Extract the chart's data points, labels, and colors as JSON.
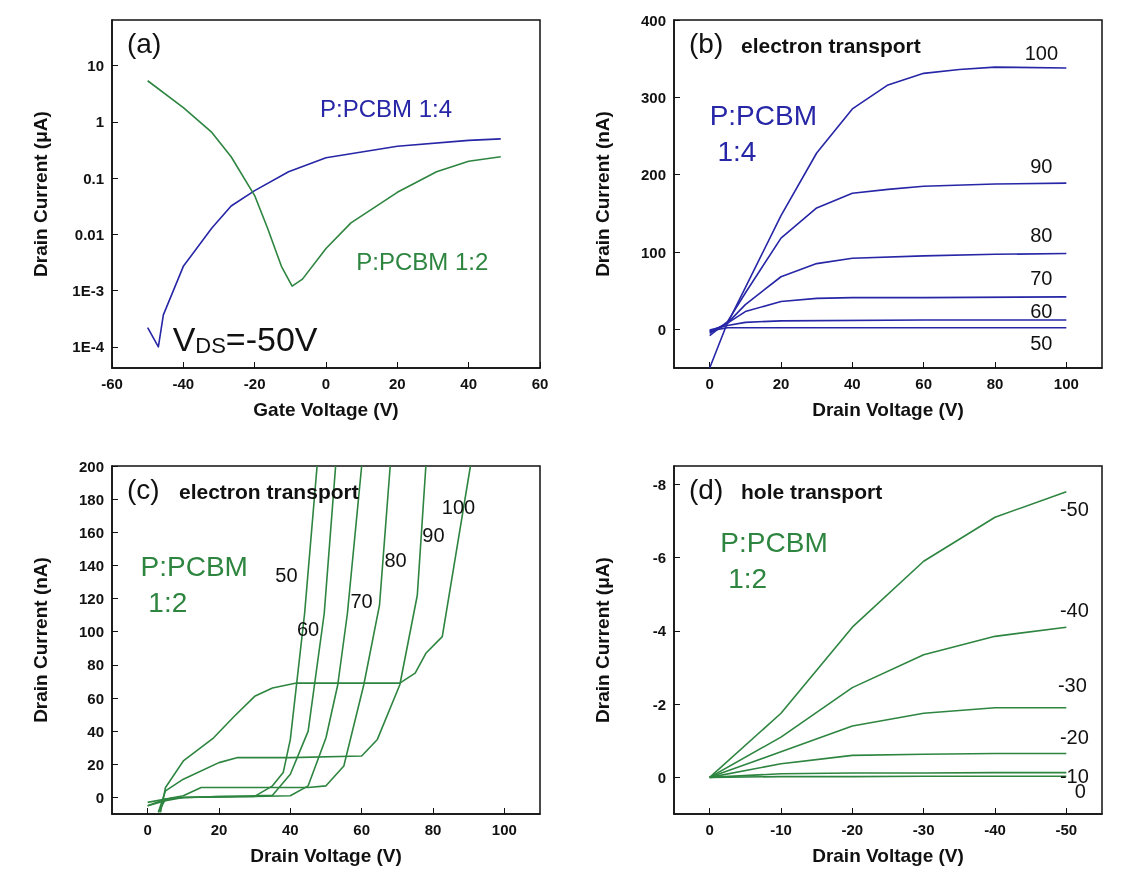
{
  "chart_data": [
    {
      "type": "line",
      "title": "(a)",
      "xlabel": "Gate Voltage (V)",
      "ylabel": "Drain Current (μA)",
      "log": "y",
      "xlim": [
        -60,
        60
      ],
      "xticks": [
        -60,
        -40,
        -20,
        0,
        20,
        40,
        60
      ],
      "ylim": [
        4.2e-05,
        65
      ],
      "yticks": [
        {
          "value": 0.0001,
          "label": "1E-4"
        },
        {
          "value": 0.001,
          "label": "1E-3"
        },
        0.01,
        0.1,
        1,
        10
      ],
      "annotations": [
        "V$_{DS}$=-50V"
      ],
      "series": [
        {
          "name": "P:PCBM 1:4",
          "color": "#2626a6",
          "x": [
            -50,
            -47,
            -45.6,
            -40,
            -32,
            -26.6,
            -20,
            -10.5,
            0,
            20,
            40,
            49
          ],
          "values": [
            0.00022,
            0.0001,
            0.00037,
            0.0027,
            0.013,
            0.032,
            0.06,
            0.13,
            0.23,
            0.37,
            0.47,
            0.5
          ]
        },
        {
          "name": "P:PCBM 1:2",
          "color": "#2e8540",
          "x": [
            -50,
            -40,
            -32,
            -26.6,
            -20,
            -16.4,
            -12.5,
            -9.5,
            -6.6,
            0,
            7,
            20,
            31,
            40,
            49
          ],
          "values": [
            5.4,
            1.8,
            0.65,
            0.24,
            0.049,
            0.013,
            0.0027,
            0.0012,
            0.0016,
            0.0056,
            0.016,
            0.056,
            0.13,
            0.2,
            0.24
          ]
        }
      ]
    },
    {
      "type": "line",
      "title": "(b)",
      "subtitle": "electron transport",
      "xlabel": "Drain Voltage (V)",
      "ylabel": "Drain Current (nA)",
      "xlim": [
        -10,
        110
      ],
      "xticks": [
        0,
        20,
        40,
        60,
        80,
        100
      ],
      "ylim": [
        -50,
        400
      ],
      "yticks": [
        0,
        100,
        200,
        300,
        400
      ],
      "annotations": [
        "P:PCBM 1:4"
      ],
      "series": [
        {
          "name": "100",
          "color": "#2626a6",
          "x": [
            0,
            4.6,
            10,
            20,
            30,
            40,
            50,
            60,
            70,
            80,
            100
          ],
          "values": [
            -50,
            4,
            54,
            147,
            228,
            285,
            316,
            331,
            336,
            339,
            338
          ]
        },
        {
          "name": "90",
          "color": "#2626a6",
          "x": [
            0,
            5,
            10,
            20,
            30,
            40,
            50,
            60,
            80,
            100
          ],
          "values": [
            -8,
            10,
            47,
            118,
            157,
            176,
            181,
            185,
            188,
            189
          ]
        },
        {
          "name": "80",
          "color": "#2626a6",
          "x": [
            0,
            5,
            10,
            20,
            30,
            40,
            60,
            80,
            100
          ],
          "values": [
            -5,
            8,
            32,
            68,
            85,
            92,
            95,
            97,
            98
          ]
        },
        {
          "name": "70",
          "color": "#2626a6",
          "x": [
            0,
            5,
            10,
            20,
            30,
            40,
            60,
            100
          ],
          "values": [
            -3,
            8,
            23,
            36,
            40,
            41,
            41,
            42
          ]
        },
        {
          "name": "60",
          "color": "#2626a6",
          "x": [
            0,
            5,
            10,
            20,
            60,
            100
          ],
          "values": [
            -1,
            5,
            9,
            11,
            12,
            12
          ]
        },
        {
          "name": "50",
          "color": "#2626a6",
          "x": [
            0,
            5,
            100
          ],
          "values": [
            -2,
            2,
            2
          ]
        }
      ]
    },
    {
      "type": "line",
      "title": "(c)",
      "subtitle": "electron transport",
      "xlabel": "Drain Voltage (V)",
      "ylabel": "Drain Current (nA)",
      "xlim": [
        -10,
        110
      ],
      "xticks": [
        0,
        20,
        40,
        60,
        80,
        100
      ],
      "ylim": [
        -10,
        200
      ],
      "yticks": [
        0,
        20,
        40,
        60,
        80,
        100,
        120,
        140,
        160,
        180,
        200
      ],
      "annotations": [
        "P:PCBM 1:2"
      ],
      "series": [
        {
          "name": "50",
          "color": "#2e8540",
          "x": [
            0,
            5,
            10,
            20,
            30,
            35,
            38,
            40,
            44,
            47.5
          ],
          "values": [
            -5,
            -2,
            0,
            0.3,
            0.6,
            7,
            15,
            35,
            111,
            200
          ]
        },
        {
          "name": "60",
          "color": "#2e8540",
          "x": [
            0,
            5,
            10,
            20,
            35,
            40,
            45,
            49.5,
            52.7
          ],
          "values": [
            -3,
            -1,
            0,
            0.5,
            1.3,
            14,
            40,
            111,
            200
          ]
        },
        {
          "name": "70",
          "color": "#2e8540",
          "x": [
            0,
            5,
            10,
            20,
            30,
            40,
            45,
            50,
            53.3,
            56,
            60
          ],
          "values": [
            -5,
            -1,
            0,
            0.5,
            0.6,
            1,
            7,
            36,
            68,
            111,
            200
          ]
        },
        {
          "name": "80",
          "color": "#2e8540",
          "x": [
            3,
            5,
            10,
            15,
            30,
            45,
            50,
            55,
            60.6,
            65,
            68
          ],
          "values": [
            -9,
            -1,
            1,
            6,
            6,
            6,
            7,
            19,
            68,
            116,
            200
          ]
        },
        {
          "name": "90",
          "color": "#2e8540",
          "x": [
            3,
            5,
            10,
            20,
            25,
            40,
            60,
            64.4,
            70.7,
            75.6,
            78
          ],
          "values": [
            -9,
            4,
            11,
            21,
            24,
            24,
            25,
            35,
            68,
            122,
            200
          ]
        },
        {
          "name": "100",
          "color": "#2e8540",
          "x": [
            3.6,
            5,
            10,
            18.5,
            24.3,
            30,
            35,
            41.7,
            60,
            70.7,
            75,
            78,
            82.6,
            90.5
          ],
          "values": [
            -9,
            6,
            22,
            36,
            49,
            61,
            66,
            69,
            69,
            69,
            75,
            87,
            97,
            200
          ]
        }
      ]
    },
    {
      "type": "line",
      "title": "(d)",
      "subtitle": "hole transport",
      "xlabel": "Drain Voltage (V)",
      "ylabel": "Drain Current (μA)",
      "xlim": [
        5,
        -55
      ],
      "xticks": [
        0,
        -10,
        -20,
        -30,
        -40,
        -50
      ],
      "ylim": [
        1,
        -8.5
      ],
      "yticks": [
        0,
        -2,
        -4,
        -6,
        -8
      ],
      "annotations": [
        "P:PCBM 1:2"
      ],
      "series": [
        {
          "name": "-50",
          "color": "#2e8540",
          "x": [
            0,
            -10,
            -20,
            -30,
            -40,
            -50
          ],
          "values": [
            0,
            -1.75,
            -4.1,
            -5.9,
            -7.1,
            -7.8
          ]
        },
        {
          "name": "-40",
          "color": "#2e8540",
          "x": [
            0,
            -10,
            -20,
            -30,
            -40,
            -50
          ],
          "values": [
            0,
            -1.1,
            -2.45,
            -3.35,
            -3.85,
            -4.1
          ]
        },
        {
          "name": "-30",
          "color": "#2e8540",
          "x": [
            0,
            -10,
            -20,
            -30,
            -40,
            -50
          ],
          "values": [
            0,
            -0.7,
            -1.4,
            -1.75,
            -1.9,
            -1.9
          ]
        },
        {
          "name": "-20",
          "color": "#2e8540",
          "x": [
            0,
            -10,
            -20,
            -30,
            -40,
            -50
          ],
          "values": [
            0,
            -0.37,
            -0.6,
            -0.63,
            -0.65,
            -0.65
          ]
        },
        {
          "name": "-10",
          "color": "#2e8540",
          "x": [
            0,
            -10,
            -20,
            -30,
            -40,
            -50
          ],
          "values": [
            0,
            -0.1,
            -0.12,
            -0.12,
            -0.13,
            -0.13
          ]
        },
        {
          "name": "0",
          "color": "#2e8540",
          "x": [
            0,
            -10,
            -20,
            -30,
            -40,
            -50
          ],
          "values": [
            0,
            -0.02,
            -0.02,
            -0.03,
            -0.03,
            -0.03
          ]
        }
      ]
    }
  ]
}
